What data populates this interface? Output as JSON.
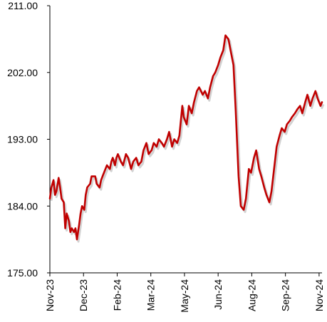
{
  "chart_data": {
    "type": "line",
    "title": "",
    "xlabel": "",
    "ylabel": "",
    "ylim": [
      175,
      211
    ],
    "y_ticks": [
      "175.00",
      "184.00",
      "193.00",
      "202.00",
      "211.00"
    ],
    "y_tick_values": [
      175,
      184,
      193,
      202,
      211
    ],
    "x_ticks": [
      "Nov-23",
      "Dec-23",
      "Feb-24",
      "Mar-24",
      "May-24",
      "Jun-24",
      "Aug-24",
      "Sep-24",
      "Nov-24"
    ],
    "x_range": [
      "2023-11-01",
      "2024-11-07"
    ],
    "x_tick_dates": [
      "2023-11-01",
      "2023-12-17",
      "2024-02-01",
      "2024-03-18",
      "2024-05-03",
      "2024-06-18",
      "2024-08-03",
      "2024-09-18",
      "2024-11-03"
    ],
    "grid": false,
    "legend": "none",
    "line_color": "#c00000",
    "series": [
      {
        "x": [
          "2023-11-01",
          "2023-11-03",
          "2023-11-06",
          "2023-11-08",
          "2023-11-10",
          "2023-11-13",
          "2023-11-15",
          "2023-11-17",
          "2023-11-20",
          "2023-11-22",
          "2023-11-24",
          "2023-11-27",
          "2023-11-29",
          "2023-12-01",
          "2023-12-04",
          "2023-12-06",
          "2023-12-08",
          "2023-12-11",
          "2023-12-13",
          "2023-12-15",
          "2023-12-18",
          "2023-12-20",
          "2023-12-22",
          "2023-12-26",
          "2023-12-28",
          "2024-01-02",
          "2024-01-04",
          "2024-01-08",
          "2024-01-10",
          "2024-01-12",
          "2024-01-16",
          "2024-01-18",
          "2024-01-22",
          "2024-01-24",
          "2024-01-26",
          "2024-01-29",
          "2024-01-31",
          "2024-02-02",
          "2024-02-06",
          "2024-02-09",
          "2024-02-13",
          "2024-02-16",
          "2024-02-20",
          "2024-02-23",
          "2024-02-27",
          "2024-03-01",
          "2024-03-05",
          "2024-03-08",
          "2024-03-12",
          "2024-03-15",
          "2024-03-19",
          "2024-03-22",
          "2024-03-26",
          "2024-03-29",
          "2024-04-02",
          "2024-04-05",
          "2024-04-09",
          "2024-04-12",
          "2024-04-16",
          "2024-04-19",
          "2024-04-23",
          "2024-04-26",
          "2024-04-30",
          "2024-05-02",
          "2024-05-06",
          "2024-05-09",
          "2024-05-13",
          "2024-05-16",
          "2024-05-20",
          "2024-05-23",
          "2024-05-28",
          "2024-05-31",
          "2024-06-04",
          "2024-06-07",
          "2024-06-11",
          "2024-06-14",
          "2024-06-18",
          "2024-06-21",
          "2024-06-25",
          "2024-06-28",
          "2024-07-02",
          "2024-07-05",
          "2024-07-09",
          "2024-07-12",
          "2024-07-16",
          "2024-07-19",
          "2024-07-23",
          "2024-07-26",
          "2024-07-30",
          "2024-08-02",
          "2024-08-06",
          "2024-08-09",
          "2024-08-13",
          "2024-08-16",
          "2024-08-20",
          "2024-08-23",
          "2024-08-27",
          "2024-08-30",
          "2024-09-03",
          "2024-09-06",
          "2024-09-10",
          "2024-09-13",
          "2024-09-17",
          "2024-09-20",
          "2024-09-24",
          "2024-09-27",
          "2024-10-01",
          "2024-10-04",
          "2024-10-08",
          "2024-10-11",
          "2024-10-15",
          "2024-10-18",
          "2024-10-22",
          "2024-10-25",
          "2024-10-29",
          "2024-11-01",
          "2024-11-05",
          "2024-11-07"
        ],
        "y": [
          185.0,
          186.5,
          187.5,
          185.5,
          186.0,
          187.8,
          186.5,
          185.0,
          184.5,
          181.0,
          183.0,
          182.0,
          180.5,
          181.0,
          180.5,
          181.0,
          179.5,
          181.5,
          183.0,
          184.0,
          183.5,
          185.5,
          186.5,
          187.0,
          188.0,
          188.0,
          187.0,
          186.5,
          187.5,
          188.0,
          189.0,
          189.5,
          189.0,
          190.0,
          190.5,
          189.5,
          190.5,
          191.0,
          190.0,
          189.5,
          191.0,
          190.5,
          189.0,
          190.0,
          190.5,
          189.5,
          190.0,
          191.5,
          192.5,
          191.0,
          191.5,
          192.5,
          192.0,
          193.0,
          192.5,
          192.0,
          193.0,
          194.0,
          192.0,
          193.0,
          192.5,
          193.5,
          197.5,
          196.0,
          195.0,
          197.5,
          196.5,
          198.0,
          199.5,
          200.0,
          199.0,
          199.5,
          198.5,
          200.0,
          201.5,
          202.0,
          203.0,
          204.0,
          205.0,
          207.0,
          206.5,
          205.0,
          203.0,
          197.0,
          188.0,
          184.0,
          183.5,
          185.0,
          189.0,
          188.5,
          190.5,
          191.5,
          189.0,
          188.0,
          186.5,
          185.5,
          184.5,
          186.0,
          189.5,
          192.0,
          193.5,
          194.5,
          194.0,
          195.0,
          195.5,
          196.0,
          196.5,
          197.0,
          197.5,
          196.5,
          198.0,
          199.0,
          197.5,
          198.5,
          199.5,
          198.5,
          197.5,
          198.0
        ]
      }
    ]
  }
}
